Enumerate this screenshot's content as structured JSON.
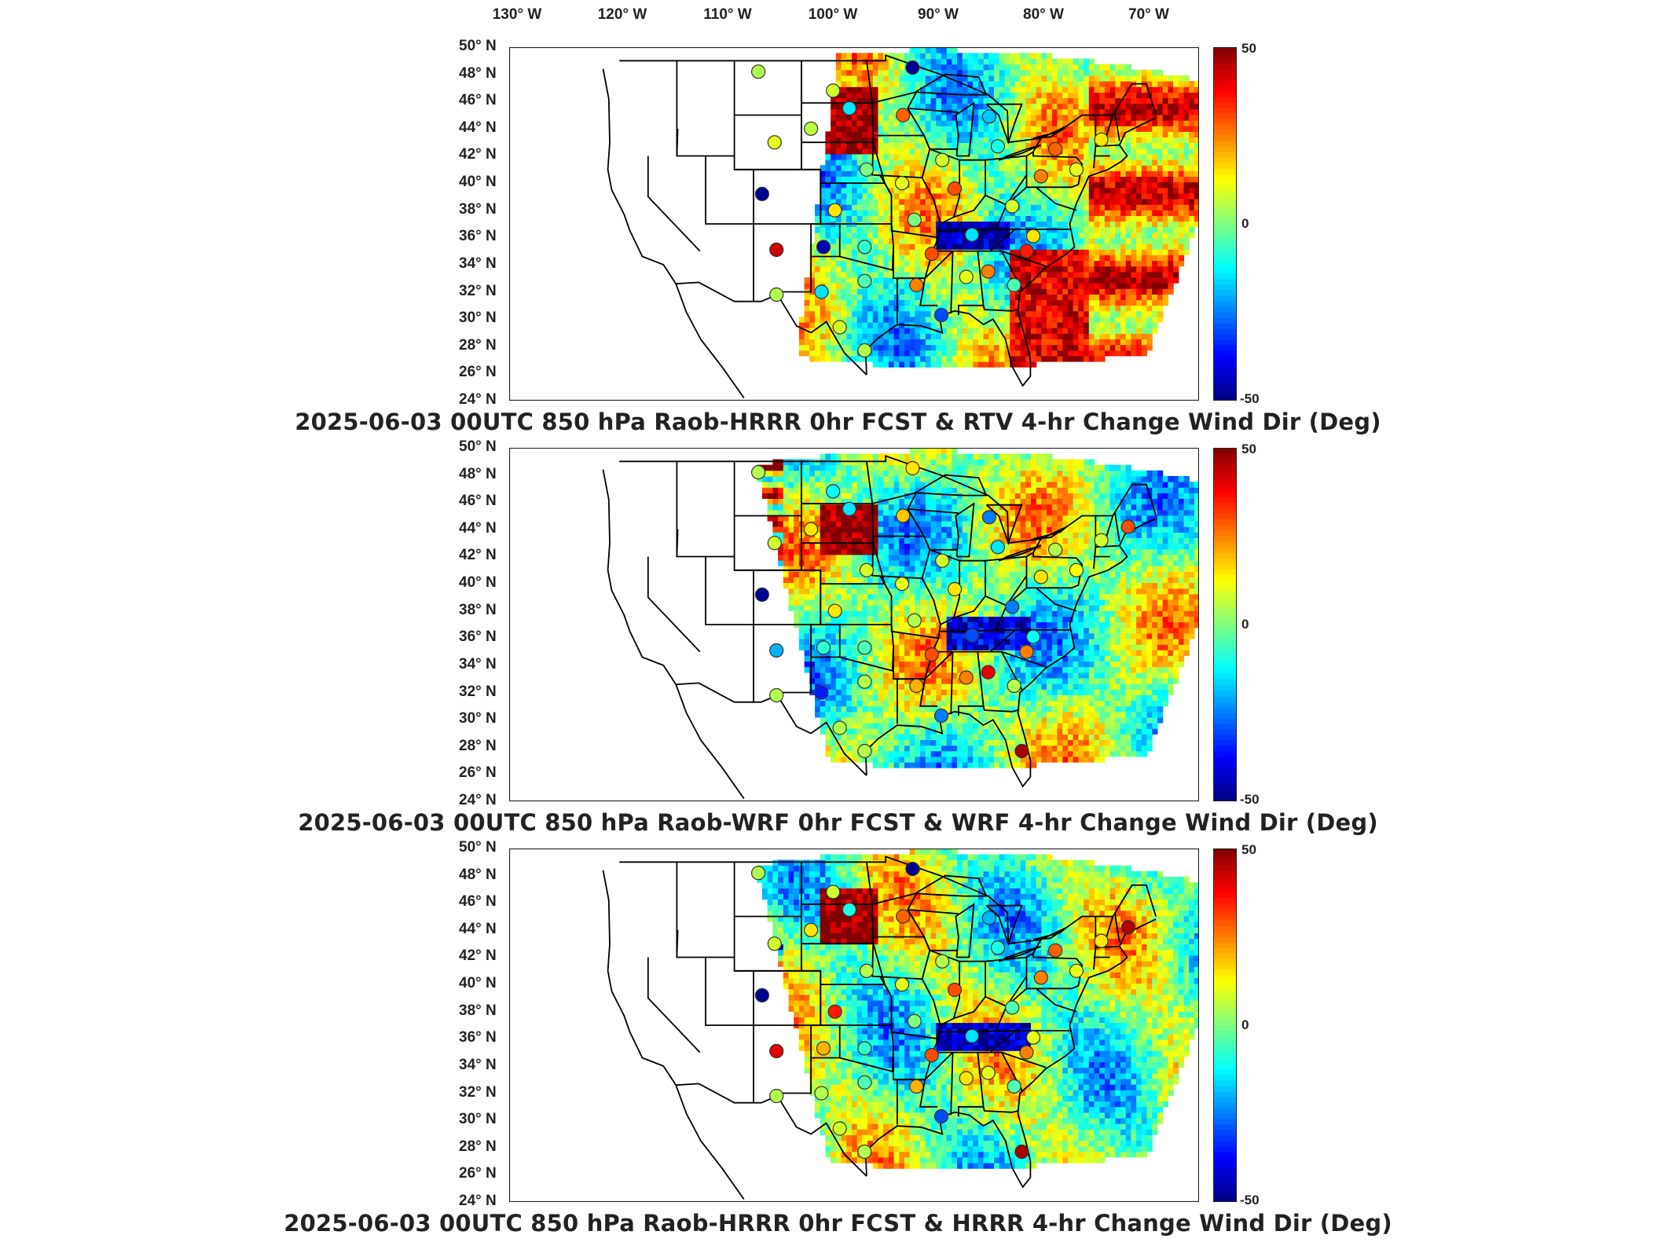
{
  "lon_labels": [
    "130° W",
    "120° W",
    "110° W",
    "100° W",
    "90° W",
    "80° W",
    "70° W"
  ],
  "lat_labels": [
    "50° N",
    "48° N",
    "46° N",
    "44° N",
    "42° N",
    "40° N",
    "38° N",
    "36° N",
    "34° N",
    "32° N",
    "30° N",
    "28° N",
    "26° N",
    "24° N"
  ],
  "colorbar": {
    "max_label": "50",
    "mid_label": "0",
    "min_label": "-50",
    "colors": [
      "#00007f",
      "#0000ff",
      "#007fff",
      "#00ffff",
      "#7fff7f",
      "#ffff00",
      "#ff7f00",
      "#ff0000",
      "#7f0000"
    ]
  },
  "panels": [
    {
      "title": "2025-06-03 00UTC 850 hPa Raob-HRRR 0hr FCST & RTV 4-hr Change Wind Dir (Deg)",
      "field": "rtv",
      "stations": [
        {
          "lon": -108.5,
          "lat": 48.2,
          "v": 5
        },
        {
          "lon": -100.7,
          "lat": 46.8,
          "v": 8
        },
        {
          "lon": -99.0,
          "lat": 45.5,
          "v": -15
        },
        {
          "lon": -103.0,
          "lat": 44.0,
          "v": 6
        },
        {
          "lon": -106.8,
          "lat": 43.0,
          "v": 10
        },
        {
          "lon": -92.4,
          "lat": 48.5,
          "v": -48
        },
        {
          "lon": -93.4,
          "lat": 45.0,
          "v": 28
        },
        {
          "lon": -84.4,
          "lat": 44.9,
          "v": -18
        },
        {
          "lon": -83.5,
          "lat": 42.7,
          "v": -10
        },
        {
          "lon": -89.3,
          "lat": 41.7,
          "v": 8
        },
        {
          "lon": -88.0,
          "lat": 39.6,
          "v": 30
        },
        {
          "lon": -97.2,
          "lat": 41.0,
          "v": 0
        },
        {
          "lon": -93.5,
          "lat": 40.0,
          "v": 10
        },
        {
          "lon": -108.1,
          "lat": 39.2,
          "v": -48
        },
        {
          "lon": -100.5,
          "lat": 38.0,
          "v": 15
        },
        {
          "lon": -92.2,
          "lat": 37.3,
          "v": 0
        },
        {
          "lon": -82.0,
          "lat": 38.3,
          "v": 8
        },
        {
          "lon": -79.0,
          "lat": 40.5,
          "v": 25
        },
        {
          "lon": -77.5,
          "lat": 42.5,
          "v": 28
        },
        {
          "lon": -72.7,
          "lat": 43.2,
          "v": 15
        },
        {
          "lon": -75.3,
          "lat": 41.0,
          "v": 10
        },
        {
          "lon": -106.6,
          "lat": 35.1,
          "v": 42
        },
        {
          "lon": -101.7,
          "lat": 35.3,
          "v": -45
        },
        {
          "lon": -97.4,
          "lat": 35.3,
          "v": -8
        },
        {
          "lon": -90.4,
          "lat": 34.8,
          "v": 30
        },
        {
          "lon": -84.5,
          "lat": 33.5,
          "v": 25
        },
        {
          "lon": -86.8,
          "lat": 33.1,
          "v": 10
        },
        {
          "lon": -97.4,
          "lat": 32.8,
          "v": -5
        },
        {
          "lon": -101.9,
          "lat": 32.0,
          "v": -15
        },
        {
          "lon": -106.6,
          "lat": 31.8,
          "v": 5
        },
        {
          "lon": -92.0,
          "lat": 32.5,
          "v": 25
        },
        {
          "lon": -89.4,
          "lat": 30.3,
          "v": -30
        },
        {
          "lon": -97.4,
          "lat": 27.7,
          "v": 5
        },
        {
          "lon": -100.0,
          "lat": 29.4,
          "v": 8
        },
        {
          "lon": -81.8,
          "lat": 32.5,
          "v": -5
        },
        {
          "lon": -79.8,
          "lat": 36.1,
          "v": 15
        },
        {
          "lon": -80.5,
          "lat": 35.0,
          "v": 35
        },
        {
          "lon": -86.2,
          "lat": 36.2,
          "v": -15
        }
      ]
    },
    {
      "title": "2025-06-03 00UTC 850 hPa Raob-WRF 0hr FCST & WRF 4-hr Change Wind Dir (Deg)",
      "field": "wrf",
      "stations": [
        {
          "lon": -108.5,
          "lat": 48.2,
          "v": 5
        },
        {
          "lon": -100.7,
          "lat": 46.8,
          "v": -12
        },
        {
          "lon": -99.0,
          "lat": 45.5,
          "v": -15
        },
        {
          "lon": -103.0,
          "lat": 44.0,
          "v": 15
        },
        {
          "lon": -106.8,
          "lat": 43.0,
          "v": 8
        },
        {
          "lon": -92.4,
          "lat": 48.5,
          "v": 15
        },
        {
          "lon": -93.4,
          "lat": 45.0,
          "v": 18
        },
        {
          "lon": -84.4,
          "lat": 44.9,
          "v": -25
        },
        {
          "lon": -83.5,
          "lat": 42.7,
          "v": -15
        },
        {
          "lon": -89.3,
          "lat": 41.7,
          "v": 8
        },
        {
          "lon": -88.0,
          "lat": 39.6,
          "v": 15
        },
        {
          "lon": -97.2,
          "lat": 41.0,
          "v": 8
        },
        {
          "lon": -93.5,
          "lat": 40.0,
          "v": 10
        },
        {
          "lon": -108.1,
          "lat": 39.2,
          "v": -48
        },
        {
          "lon": -100.5,
          "lat": 38.0,
          "v": 15
        },
        {
          "lon": -92.2,
          "lat": 37.3,
          "v": 5
        },
        {
          "lon": -82.0,
          "lat": 38.3,
          "v": -25
        },
        {
          "lon": -79.0,
          "lat": 40.5,
          "v": 15
        },
        {
          "lon": -77.5,
          "lat": 42.5,
          "v": 5
        },
        {
          "lon": -72.7,
          "lat": 43.2,
          "v": 8
        },
        {
          "lon": -75.3,
          "lat": 41.0,
          "v": 12
        },
        {
          "lon": -106.6,
          "lat": 35.1,
          "v": -20
        },
        {
          "lon": -101.7,
          "lat": 35.3,
          "v": -8
        },
        {
          "lon": -97.4,
          "lat": 35.3,
          "v": -5
        },
        {
          "lon": -90.4,
          "lat": 34.8,
          "v": 30
        },
        {
          "lon": -84.5,
          "lat": 33.5,
          "v": 40
        },
        {
          "lon": -86.8,
          "lat": 33.1,
          "v": 25
        },
        {
          "lon": -97.4,
          "lat": 32.8,
          "v": 5
        },
        {
          "lon": -101.9,
          "lat": 32.0,
          "v": -35
        },
        {
          "lon": -106.6,
          "lat": 31.8,
          "v": 5
        },
        {
          "lon": -92.0,
          "lat": 32.5,
          "v": 20
        },
        {
          "lon": -89.4,
          "lat": 30.3,
          "v": -25
        },
        {
          "lon": -97.4,
          "lat": 27.7,
          "v": 5
        },
        {
          "lon": -100.0,
          "lat": 29.4,
          "v": 5
        },
        {
          "lon": -81.8,
          "lat": 32.5,
          "v": 5
        },
        {
          "lon": -79.8,
          "lat": 36.1,
          "v": -12
        },
        {
          "lon": -80.5,
          "lat": 35.0,
          "v": 25
        },
        {
          "lon": -86.2,
          "lat": 36.2,
          "v": -30
        },
        {
          "lon": -81.0,
          "lat": 27.7,
          "v": 46
        },
        {
          "lon": -69.9,
          "lat": 44.2,
          "v": 30
        }
      ]
    },
    {
      "title": "2025-06-03 00UTC 850 hPa Raob-HRRR 0hr FCST & HRRR 4-hr Change Wind Dir (Deg)",
      "field": "hrrr",
      "stations": [
        {
          "lon": -108.5,
          "lat": 48.2,
          "v": 5
        },
        {
          "lon": -100.7,
          "lat": 46.8,
          "v": 8
        },
        {
          "lon": -99.0,
          "lat": 45.5,
          "v": -10
        },
        {
          "lon": -103.0,
          "lat": 44.0,
          "v": 15
        },
        {
          "lon": -106.8,
          "lat": 43.0,
          "v": 8
        },
        {
          "lon": -92.4,
          "lat": 48.5,
          "v": -48
        },
        {
          "lon": -93.4,
          "lat": 45.0,
          "v": 28
        },
        {
          "lon": -84.4,
          "lat": 44.9,
          "v": -20
        },
        {
          "lon": -83.5,
          "lat": 42.7,
          "v": -10
        },
        {
          "lon": -89.3,
          "lat": 41.7,
          "v": 5
        },
        {
          "lon": -88.0,
          "lat": 39.6,
          "v": 30
        },
        {
          "lon": -97.2,
          "lat": 41.0,
          "v": 5
        },
        {
          "lon": -93.5,
          "lat": 40.0,
          "v": 10
        },
        {
          "lon": -108.1,
          "lat": 39.2,
          "v": -48
        },
        {
          "lon": -100.5,
          "lat": 38.0,
          "v": 35
        },
        {
          "lon": -92.2,
          "lat": 37.3,
          "v": 0
        },
        {
          "lon": -82.0,
          "lat": 38.3,
          "v": -5
        },
        {
          "lon": -79.0,
          "lat": 40.5,
          "v": 25
        },
        {
          "lon": -77.5,
          "lat": 42.5,
          "v": 28
        },
        {
          "lon": -72.7,
          "lat": 43.2,
          "v": 15
        },
        {
          "lon": -75.3,
          "lat": 41.0,
          "v": 10
        },
        {
          "lon": -106.6,
          "lat": 35.1,
          "v": 40
        },
        {
          "lon": -101.7,
          "lat": 35.3,
          "v": 20
        },
        {
          "lon": -97.4,
          "lat": 35.3,
          "v": -8
        },
        {
          "lon": -90.4,
          "lat": 34.8,
          "v": 30
        },
        {
          "lon": -84.5,
          "lat": 33.5,
          "v": 10
        },
        {
          "lon": -86.8,
          "lat": 33.1,
          "v": 15
        },
        {
          "lon": -97.4,
          "lat": 32.8,
          "v": -5
        },
        {
          "lon": -101.9,
          "lat": 32.0,
          "v": 5
        },
        {
          "lon": -106.6,
          "lat": 31.8,
          "v": 5
        },
        {
          "lon": -92.0,
          "lat": 32.5,
          "v": 20
        },
        {
          "lon": -89.4,
          "lat": 30.3,
          "v": -30
        },
        {
          "lon": -97.4,
          "lat": 27.7,
          "v": 5
        },
        {
          "lon": -100.0,
          "lat": 29.4,
          "v": 8
        },
        {
          "lon": -81.8,
          "lat": 32.5,
          "v": -5
        },
        {
          "lon": -79.8,
          "lat": 36.1,
          "v": 10
        },
        {
          "lon": -80.5,
          "lat": 35.0,
          "v": 25
        },
        {
          "lon": -86.2,
          "lat": 36.2,
          "v": -15
        },
        {
          "lon": -81.0,
          "lat": 27.7,
          "v": 46
        },
        {
          "lon": -69.9,
          "lat": 44.2,
          "v": 45
        }
      ]
    }
  ]
}
